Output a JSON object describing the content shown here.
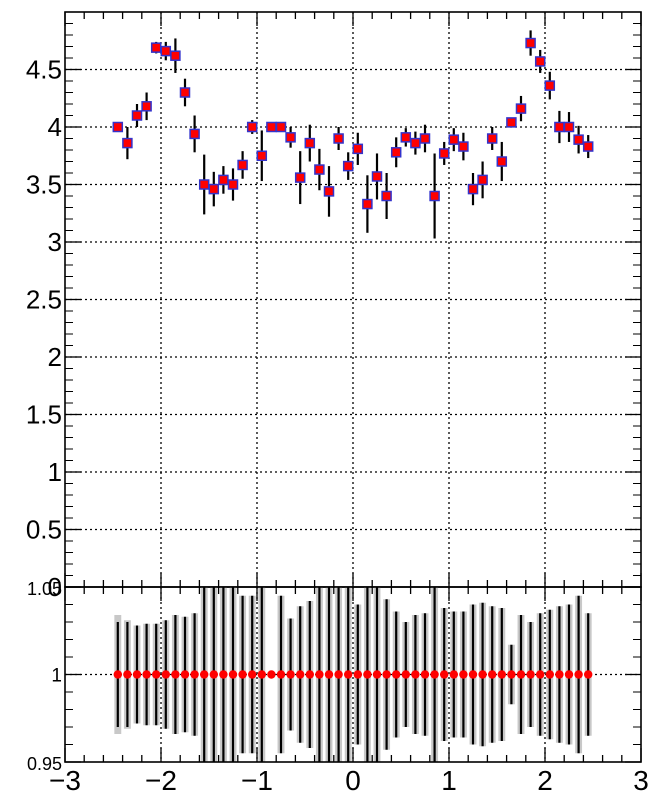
{
  "colors": {
    "marker_fill": "#ff0000",
    "marker_edge": "#3333cc",
    "errorbar": "#000000",
    "ratio_band": "#c8c8c8",
    "grid": "#000000",
    "frame": "#000000"
  },
  "chart_data": [
    {
      "type": "scatter",
      "title": "",
      "xlabel": "",
      "ylabel": "",
      "xlim": [
        -3,
        3
      ],
      "ylim": [
        0,
        5
      ],
      "grid": true,
      "y_ticks": [
        "0",
        "0.5",
        "1",
        "1.5",
        "2",
        "2.5",
        "3",
        "3.5",
        "4",
        "4.5"
      ],
      "series": [
        {
          "x": [
            -2.45,
            -2.35,
            -2.25,
            -2.15,
            -2.05,
            -1.95,
            -1.85,
            -1.75,
            -1.65,
            -1.55,
            -1.45,
            -1.35,
            -1.25,
            -1.15,
            -1.05,
            -0.95,
            -0.85,
            -0.75,
            -0.65,
            -0.55,
            -0.45,
            -0.35,
            -0.25,
            -0.15,
            -0.05,
            0.05,
            0.15,
            0.25,
            0.35,
            0.45,
            0.55,
            0.65,
            0.75,
            0.85,
            0.95,
            1.05,
            1.15,
            1.25,
            1.35,
            1.45,
            1.55,
            1.65,
            1.75,
            1.85,
            1.95,
            2.05,
            2.15,
            2.25,
            2.35,
            2.45
          ],
          "y": [
            4.0,
            3.86,
            4.1,
            4.18,
            4.69,
            4.66,
            4.62,
            4.3,
            3.94,
            3.5,
            3.46,
            3.54,
            3.5,
            3.67,
            4.0,
            3.75,
            4.0,
            4.0,
            3.91,
            3.56,
            3.86,
            3.63,
            3.44,
            3.9,
            3.66,
            3.81,
            3.33,
            3.57,
            3.4,
            3.78,
            3.91,
            3.86,
            3.9,
            3.4,
            3.77,
            3.89,
            3.83,
            3.46,
            3.54,
            3.9,
            3.7,
            4.04,
            4.16,
            4.73,
            4.57,
            4.36,
            4.0,
            4.0,
            3.89,
            3.83
          ],
          "yerr": [
            0.0,
            0.14,
            0.1,
            0.12,
            0.05,
            0.08,
            0.15,
            0.12,
            0.16,
            0.26,
            0.15,
            0.12,
            0.14,
            0.12,
            0.06,
            0.22,
            0.0,
            0.0,
            0.09,
            0.23,
            0.16,
            0.18,
            0.22,
            0.1,
            0.12,
            0.14,
            0.25,
            0.2,
            0.2,
            0.13,
            0.08,
            0.1,
            0.12,
            0.37,
            0.1,
            0.1,
            0.12,
            0.14,
            0.16,
            0.1,
            0.17,
            0.0,
            0.11,
            0.11,
            0.1,
            0.12,
            0.14,
            0.13,
            0.12,
            0.1
          ]
        }
      ]
    },
    {
      "type": "scatter",
      "title": "",
      "xlabel": "",
      "ylabel": "",
      "xlim": [
        -3,
        3
      ],
      "ylim": [
        0.95,
        1.05
      ],
      "grid": true,
      "x_ticks": [
        "−3",
        "−2",
        "−1",
        "0",
        "1",
        "2",
        "3"
      ],
      "y_ticks": [
        "0.95",
        "1",
        "1.05"
      ],
      "series": [
        {
          "x": [
            -2.45,
            -2.35,
            -2.25,
            -2.15,
            -2.05,
            -1.95,
            -1.85,
            -1.75,
            -1.65,
            -1.55,
            -1.45,
            -1.35,
            -1.25,
            -1.15,
            -1.05,
            -0.95,
            -0.85,
            -0.75,
            -0.65,
            -0.55,
            -0.45,
            -0.35,
            -0.25,
            -0.15,
            -0.05,
            0.05,
            0.15,
            0.25,
            0.35,
            0.45,
            0.55,
            0.65,
            0.75,
            0.85,
            0.95,
            1.05,
            1.15,
            1.25,
            1.35,
            1.45,
            1.55,
            1.65,
            1.75,
            1.85,
            1.95,
            2.05,
            2.15,
            2.25,
            2.35,
            2.45
          ],
          "y": [
            1,
            1,
            1,
            1,
            1,
            1,
            1,
            1,
            1,
            1,
            1,
            1,
            1,
            1,
            1,
            1,
            1,
            1,
            1,
            1,
            1,
            1,
            1,
            1,
            1,
            1,
            1,
            1,
            1,
            1,
            1,
            1,
            1,
            1,
            1,
            1,
            1,
            1,
            1,
            1,
            1,
            1,
            1,
            1,
            1,
            1,
            1,
            1,
            1,
            1
          ],
          "band_halfwidth": [
            0.034,
            0.031,
            0.028,
            0.029,
            0.029,
            0.031,
            0.034,
            0.033,
            0.035,
            0.055,
            0.055,
            0.06,
            0.06,
            0.045,
            0.045,
            0.1,
            0.0,
            0.045,
            0.032,
            0.039,
            0.042,
            0.06,
            0.06,
            0.052,
            0.055,
            0.04,
            0.06,
            0.055,
            0.043,
            0.036,
            0.03,
            0.034,
            0.035,
            0.05,
            0.038,
            0.036,
            0.036,
            0.04,
            0.041,
            0.039,
            0.038,
            0.017,
            0.034,
            0.03,
            0.035,
            0.037,
            0.039,
            0.04,
            0.045,
            0.035
          ],
          "yerr": [
            0.03,
            0.03,
            0.028,
            0.029,
            0.029,
            0.031,
            0.034,
            0.033,
            0.035,
            0.05,
            0.05,
            0.05,
            0.05,
            0.045,
            0.045,
            0.05,
            0.0,
            0.045,
            0.032,
            0.039,
            0.042,
            0.05,
            0.05,
            0.05,
            0.05,
            0.04,
            0.05,
            0.05,
            0.043,
            0.036,
            0.03,
            0.034,
            0.035,
            0.05,
            0.038,
            0.036,
            0.036,
            0.04,
            0.041,
            0.039,
            0.038,
            0.017,
            0.034,
            0.03,
            0.035,
            0.037,
            0.039,
            0.04,
            0.045,
            0.035
          ]
        }
      ]
    }
  ]
}
